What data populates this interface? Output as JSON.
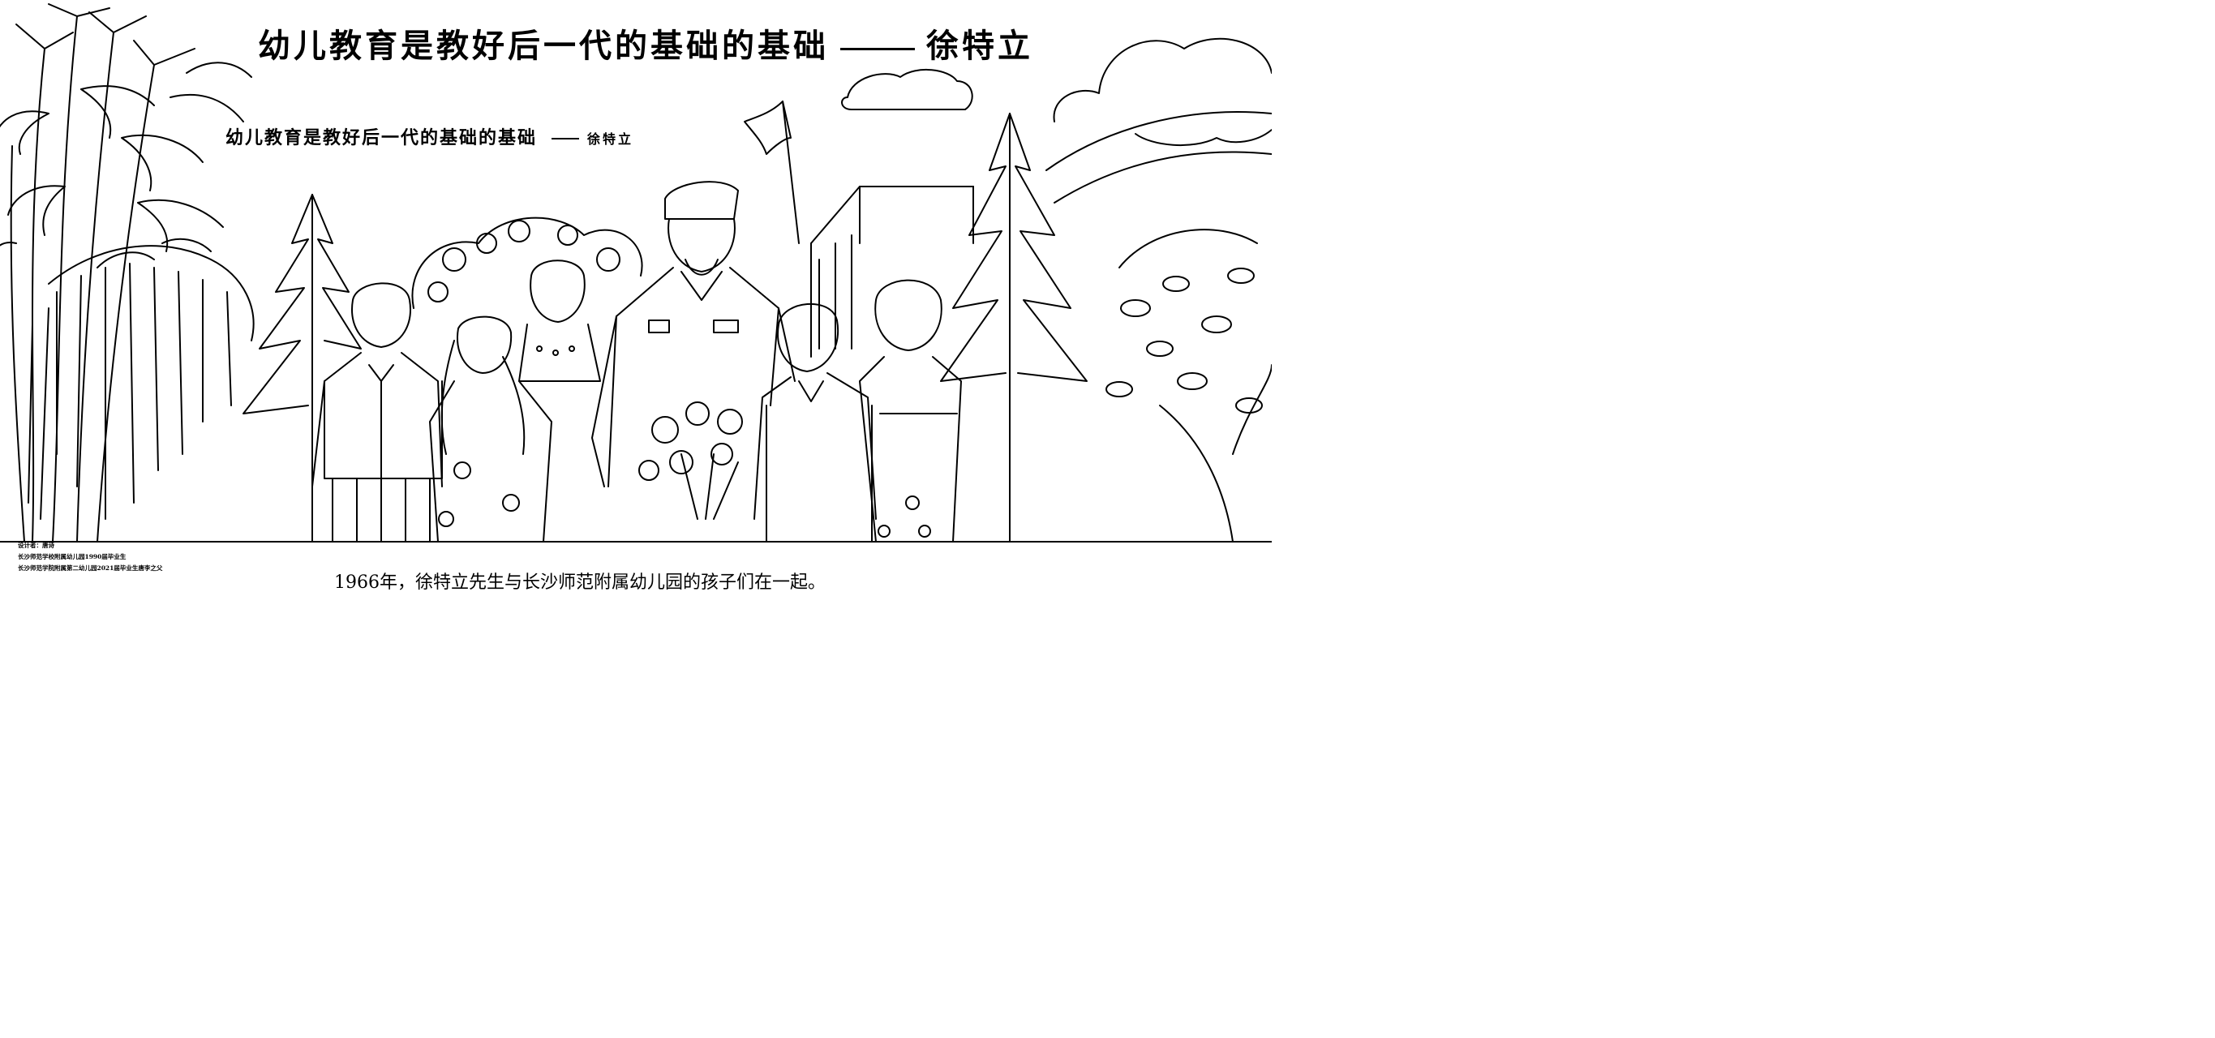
{
  "header": {
    "title": "幼儿教育是教好后一代的基础的基础",
    "author": "徐特立"
  },
  "inner_banner": {
    "title": "幼儿教育是教好后一代的基础的基础",
    "author": "徐特立"
  },
  "caption": "1966年，徐特立先生与长沙师范附属幼儿园的孩子们在一起。",
  "credits": [
    "设计者：唐诗",
    "长沙师范学校附属幼儿园1990届毕业生",
    "长沙师范学院附属第二幼儿园2021届毕业生唐李之父"
  ]
}
